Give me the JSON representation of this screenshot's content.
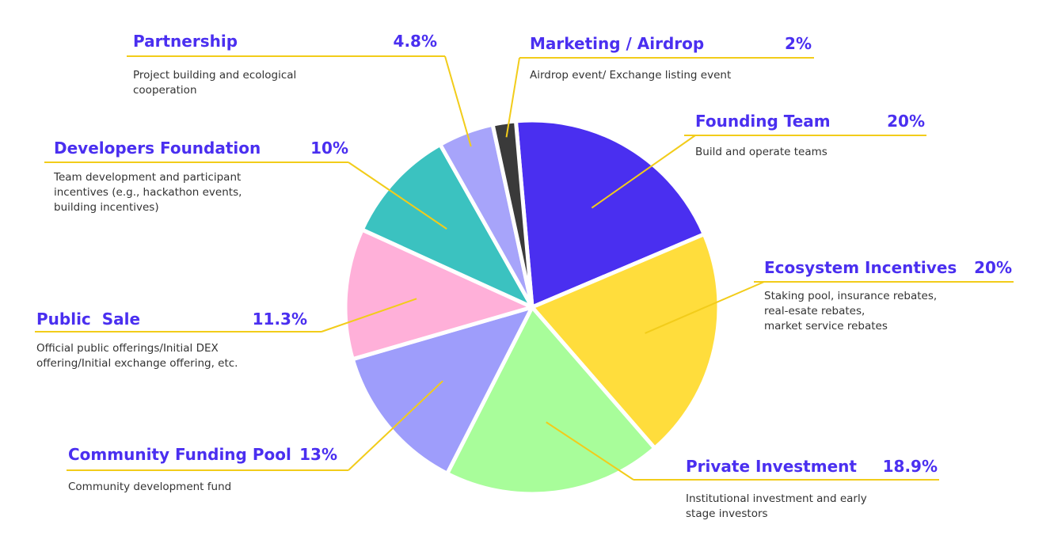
{
  "chart_data": {
    "type": "pie",
    "series": [
      {
        "name": "Founding Team",
        "value": 20,
        "value_label": "20%",
        "description": [
          "Build and operate teams"
        ],
        "color": "#4a2ff0"
      },
      {
        "name": "Ecosystem Incentives",
        "value": 20,
        "value_label": "20%",
        "description": [
          "Staking pool, insurance rebates,",
          "real-esate rebates,",
          "market service rebates"
        ],
        "color": "#ffdd3c"
      },
      {
        "name": "Private Investment",
        "value": 18.9,
        "value_label": "18.9%",
        "description": [
          "Institutional investment and early",
          "stage investors"
        ],
        "color": "#a8fd9a"
      },
      {
        "name": "Community Funding Pool",
        "value": 13,
        "value_label": "13%",
        "description": [
          "Community development fund"
        ],
        "color": "#9e9dfb"
      },
      {
        "name": "Public  Sale",
        "value": 11.3,
        "value_label": "11.3%",
        "description": [
          "Official public offerings/Initial DEX",
          "offering/Initial exchange offering, etc."
        ],
        "color": "#ffb0d9"
      },
      {
        "name": "Developers Foundation",
        "value": 10,
        "value_label": "10%",
        "description": [
          "Team development and participant",
          "incentives (e.g., hackathon events,",
          "building incentives)"
        ],
        "color": "#3bc2c0"
      },
      {
        "name": "Partnership",
        "value": 4.8,
        "value_label": "4.8%",
        "description": [
          "Project building and ecological",
          "cooperation"
        ],
        "color": "#a7a4fa"
      },
      {
        "name": "Marketing / Airdrop",
        "value": 2,
        "value_label": "2%",
        "description": [
          "Airdrop event/ Exchange listing event"
        ],
        "color": "#3a3a3a"
      }
    ],
    "leader_color": "#f2cc1a",
    "text_color": "#4a2ff0"
  }
}
